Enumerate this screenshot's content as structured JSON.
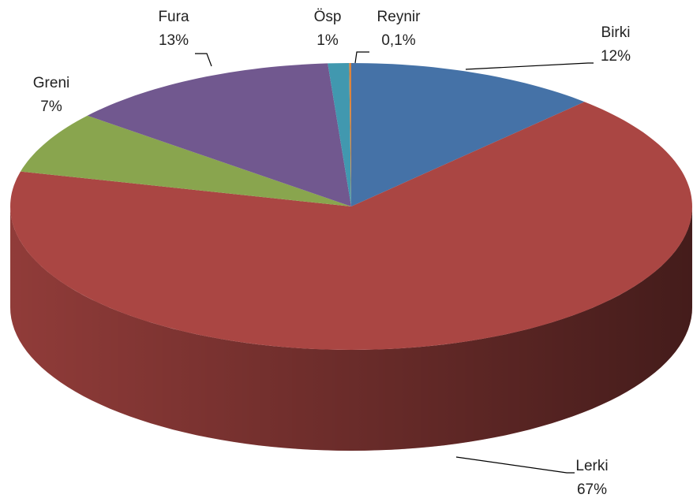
{
  "chart_data": {
    "type": "pie",
    "categories": [
      "Birki",
      "Lerki",
      "Greni",
      "Fura",
      "Ösp",
      "Reynir"
    ],
    "values": [
      12,
      67,
      7,
      13,
      1,
      0.1
    ],
    "value_labels": [
      "12%",
      "67%",
      "7%",
      "13%",
      "1%",
      "0,1%"
    ],
    "colors": [
      "#4572a7",
      "#aa4643",
      "#89a54e",
      "#71588f",
      "#4198af",
      "#db843d"
    ]
  }
}
